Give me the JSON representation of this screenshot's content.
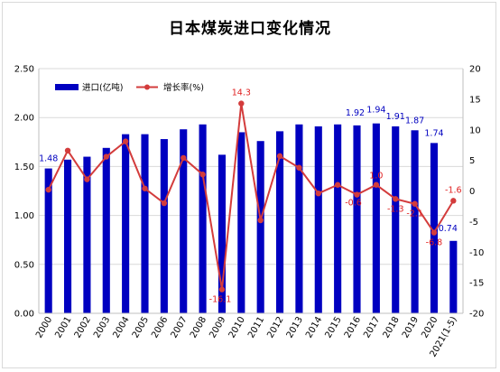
{
  "chart_data": {
    "type": "bar",
    "title": "日本煤炭进口变化情况",
    "categories": [
      "2000",
      "2001",
      "2002",
      "2003",
      "2004",
      "2005",
      "2006",
      "2007",
      "2008",
      "2009",
      "2010",
      "2011",
      "2012",
      "2013",
      "2014",
      "2015",
      "2016",
      "2017",
      "2018",
      "2019",
      "2020",
      "2021(1-5)"
    ],
    "series": [
      {
        "name": "进口(亿吨)",
        "type": "bar",
        "axis": "left",
        "color": "#0000c0",
        "values": [
          1.48,
          1.57,
          1.6,
          1.69,
          1.83,
          1.83,
          1.78,
          1.88,
          1.93,
          1.62,
          1.85,
          1.76,
          1.86,
          1.93,
          1.91,
          1.93,
          1.92,
          1.94,
          1.91,
          1.87,
          1.74,
          0.74
        ],
        "labels": {
          "0": "1.48",
          "16": "1.92",
          "17": "1.94",
          "18": "1.91",
          "19": "1.87",
          "20": "1.74",
          "21": "0.74"
        }
      },
      {
        "name": "增长率(%)",
        "type": "line",
        "axis": "right",
        "color": "#d33c3c",
        "values": [
          0.2,
          6.6,
          1.9,
          5.6,
          8.1,
          0.4,
          -2.0,
          5.4,
          2.7,
          -16.1,
          14.3,
          -4.8,
          5.7,
          3.8,
          -0.4,
          1.0,
          -0.6,
          1.0,
          -1.3,
          -2.1,
          -6.8,
          -1.6
        ],
        "labels": {
          "9": "-16.1",
          "10": "14.3",
          "16": "-0.6",
          "17": "1.0",
          "18": "-1.3",
          "19": "-2.1",
          "20": "-6.8",
          "21": "-1.6"
        }
      }
    ],
    "ylim": [
      0,
      2.5
    ],
    "y_ticks": [
      "0.00",
      "0.50",
      "1.00",
      "1.50",
      "2.00",
      "2.50"
    ],
    "y2lim": [
      -20,
      20
    ],
    "y2_ticks": [
      "-20",
      "-15",
      "-10",
      "-5",
      "0",
      "5",
      "10",
      "15",
      "20"
    ],
    "grid": true,
    "legend": "top-left"
  }
}
